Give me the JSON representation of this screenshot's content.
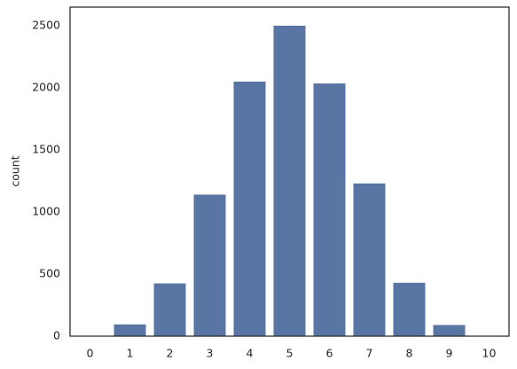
{
  "chart_data": {
    "type": "bar",
    "ylabel": "count",
    "categories": [
      "0",
      "1",
      "2",
      "3",
      "4",
      "5",
      "6",
      "7",
      "8",
      "9",
      "10"
    ],
    "values": [
      0,
      95,
      425,
      1140,
      2050,
      2500,
      2035,
      1230,
      430,
      90,
      0
    ],
    "color": "#5975a4",
    "ylim": [
      0,
      2650
    ],
    "yticks": [
      0,
      500,
      1000,
      1500,
      2000,
      2500
    ],
    "grid": false
  }
}
